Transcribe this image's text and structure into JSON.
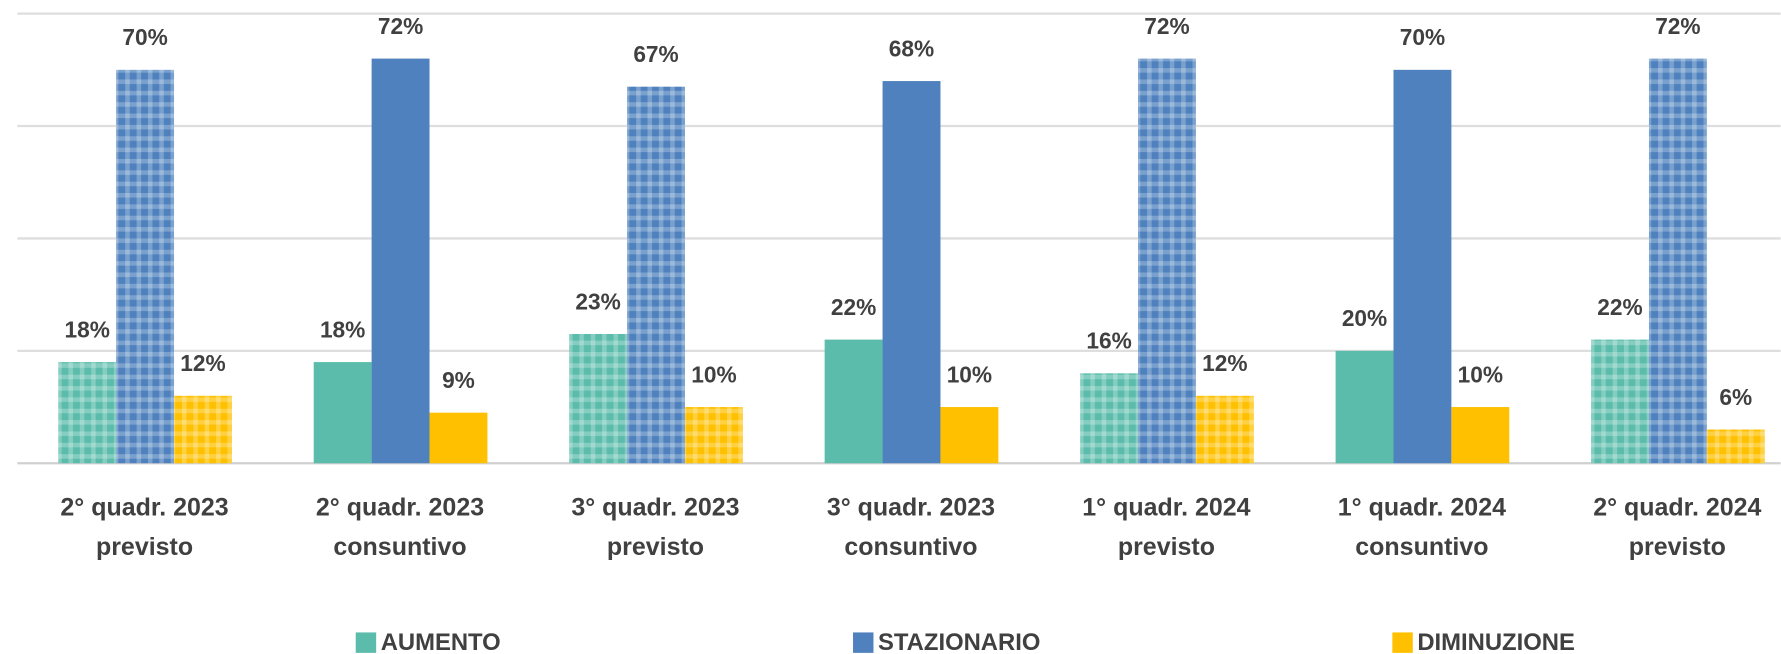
{
  "chart_data": {
    "type": "bar",
    "categories": [
      [
        "2° quadr. 2023",
        "previsto"
      ],
      [
        "2° quadr. 2023",
        "consuntivo"
      ],
      [
        "3° quadr. 2023",
        "previsto"
      ],
      [
        "3° quadr. 2023",
        "consuntivo"
      ],
      [
        "1° quadr. 2024",
        "previsto"
      ],
      [
        "1° quadr. 2024",
        "consuntivo"
      ],
      [
        "2° quadr. 2024",
        "previsto"
      ]
    ],
    "patterned": [
      true,
      false,
      true,
      false,
      true,
      false,
      true
    ],
    "series": [
      {
        "name": "AUMENTO",
        "color": "#5bbcab",
        "values": [
          18,
          18,
          23,
          22,
          16,
          20,
          22
        ],
        "value_labels": [
          "18%",
          "18%",
          "23%",
          "22%",
          "16%",
          "20%",
          "22%"
        ]
      },
      {
        "name": "STAZIONARIO",
        "color": "#4e81bd",
        "values": [
          70,
          72,
          67,
          68,
          72,
          70,
          72
        ],
        "value_labels": [
          "70%",
          "72%",
          "67%",
          "68%",
          "72%",
          "70%",
          "72%"
        ]
      },
      {
        "name": "DIMINUZIONE",
        "color": "#ffc000",
        "values": [
          12,
          9,
          10,
          10,
          12,
          10,
          6
        ],
        "value_labels": [
          "12%",
          "9%",
          "10%",
          "10%",
          "12%",
          "10%",
          "6%"
        ]
      }
    ],
    "ylim": [
      0,
      80
    ],
    "yticks": [
      0,
      20,
      40,
      60,
      80
    ],
    "grid": true
  }
}
